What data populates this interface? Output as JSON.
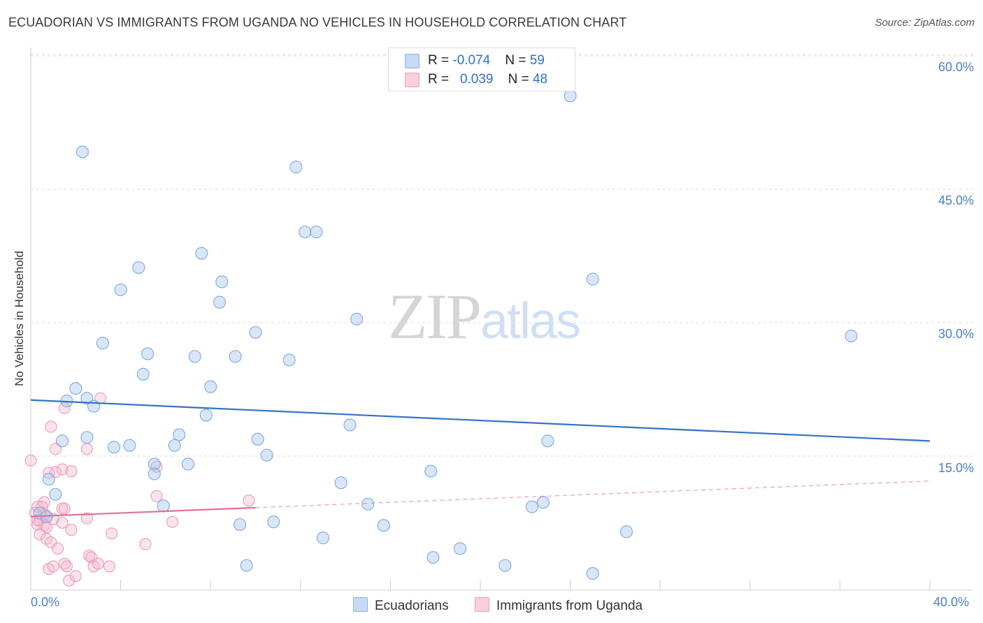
{
  "header": {
    "title": "ECUADORIAN VS IMMIGRANTS FROM UGANDA NO VEHICLES IN HOUSEHOLD CORRELATION CHART",
    "source": "Source: ZipAtlas.com"
  },
  "watermark": {
    "zip": "ZIP",
    "atlas": "atlas"
  },
  "legend_top": {
    "rows": [
      {
        "r_label": "R = ",
        "r_value": "-0.074",
        "n_label": "N = ",
        "n_value": "59",
        "color": "#a9c8f0"
      },
      {
        "r_label": "R = ",
        "r_value": "0.039",
        "n_label": "N = ",
        "n_value": "48",
        "color": "#f6b8cc"
      }
    ]
  },
  "legend_bottom": {
    "items": [
      "Ecuadorians",
      "Immigrants from Uganda"
    ]
  },
  "chart_data": {
    "type": "scatter",
    "title": "ECUADORIAN VS IMMIGRANTS FROM UGANDA NO VEHICLES IN HOUSEHOLD CORRELATION CHART",
    "xlabel": "",
    "ylabel": "No Vehicles in Household",
    "xlim": [
      0,
      40
    ],
    "ylim": [
      0,
      60
    ],
    "x_tick_labels": [
      "0.0%",
      "40.0%"
    ],
    "y_tick_labels": [
      "15.0%",
      "30.0%",
      "45.0%",
      "60.0%"
    ],
    "y_ticks": [
      15,
      30,
      45,
      60
    ],
    "grid": true,
    "legend_position": "bottom",
    "colors": {
      "ecuadorians": "#a9c8f0",
      "ecuadorians_line": "#2f72cf",
      "uganda": "#f6b8cc",
      "uganda_line": "#e2719a"
    },
    "series": [
      {
        "name": "Ecuadorians",
        "trend": {
          "x": [
            0,
            40
          ],
          "y": [
            21.3,
            16.7
          ]
        },
        "points": [
          [
            2.3,
            49.2
          ],
          [
            11.8,
            47.5
          ],
          [
            24.0,
            55.5
          ],
          [
            12.2,
            40.2
          ],
          [
            12.7,
            40.2
          ],
          [
            7.6,
            37.8
          ],
          [
            4.8,
            36.2
          ],
          [
            4.0,
            33.7
          ],
          [
            8.5,
            34.6
          ],
          [
            8.4,
            32.3
          ],
          [
            14.5,
            30.4
          ],
          [
            25.0,
            34.9
          ],
          [
            36.5,
            28.5
          ],
          [
            3.2,
            27.7
          ],
          [
            10.0,
            28.9
          ],
          [
            5.2,
            26.5
          ],
          [
            7.3,
            26.2
          ],
          [
            9.1,
            26.2
          ],
          [
            11.5,
            25.8
          ],
          [
            5.0,
            24.2
          ],
          [
            2.0,
            22.6
          ],
          [
            8.0,
            22.8
          ],
          [
            2.5,
            21.5
          ],
          [
            1.6,
            21.2
          ],
          [
            2.8,
            20.6
          ],
          [
            7.8,
            19.6
          ],
          [
            14.2,
            18.5
          ],
          [
            2.5,
            17.1
          ],
          [
            6.6,
            17.4
          ],
          [
            10.1,
            16.9
          ],
          [
            1.4,
            16.7
          ],
          [
            3.7,
            16.0
          ],
          [
            4.4,
            16.2
          ],
          [
            6.4,
            16.2
          ],
          [
            23.0,
            16.7
          ],
          [
            10.5,
            15.1
          ],
          [
            5.5,
            14.1
          ],
          [
            7.0,
            14.1
          ],
          [
            17.8,
            13.3
          ],
          [
            5.5,
            13.0
          ],
          [
            0.8,
            12.4
          ],
          [
            13.8,
            12.0
          ],
          [
            1.1,
            10.7
          ],
          [
            5.9,
            9.4
          ],
          [
            15.0,
            9.6
          ],
          [
            22.8,
            9.8
          ],
          [
            22.3,
            9.3
          ],
          [
            0.4,
            8.6
          ],
          [
            0.7,
            8.2
          ],
          [
            9.3,
            7.3
          ],
          [
            10.8,
            7.6
          ],
          [
            15.7,
            7.2
          ],
          [
            26.5,
            6.5
          ],
          [
            13.0,
            5.8
          ],
          [
            19.1,
            4.6
          ],
          [
            17.9,
            3.6
          ],
          [
            21.1,
            2.7
          ],
          [
            9.6,
            2.7
          ],
          [
            25.0,
            1.8
          ]
        ]
      },
      {
        "name": "Immigrants from Uganda",
        "trend": {
          "x": [
            0,
            10
          ],
          "y": [
            8.2,
            9.2
          ]
        },
        "trend_extension": {
          "x": [
            10,
            40
          ],
          "y": [
            9.2,
            12.2
          ]
        },
        "points": [
          [
            0.0,
            14.5
          ],
          [
            3.1,
            21.5
          ],
          [
            1.5,
            20.4
          ],
          [
            0.9,
            18.3
          ],
          [
            1.1,
            15.8
          ],
          [
            2.5,
            15.8
          ],
          [
            1.4,
            13.5
          ],
          [
            0.8,
            13.1
          ],
          [
            1.1,
            13.2
          ],
          [
            1.8,
            13.3
          ],
          [
            5.6,
            13.8
          ],
          [
            5.6,
            10.5
          ],
          [
            0.6,
            9.8
          ],
          [
            9.7,
            10.0
          ],
          [
            0.3,
            9.3
          ],
          [
            0.5,
            9.3
          ],
          [
            1.4,
            9.1
          ],
          [
            1.5,
            9.1
          ],
          [
            0.2,
            8.6
          ],
          [
            0.6,
            8.5
          ],
          [
            0.7,
            8.1
          ],
          [
            2.5,
            8.0
          ],
          [
            0.4,
            7.8
          ],
          [
            1.4,
            7.5
          ],
          [
            6.3,
            7.6
          ],
          [
            0.3,
            7.3
          ],
          [
            0.6,
            7.2
          ],
          [
            0.7,
            7.0
          ],
          [
            1.8,
            6.7
          ],
          [
            3.6,
            6.3
          ],
          [
            0.4,
            6.2
          ],
          [
            0.7,
            5.7
          ],
          [
            0.9,
            5.3
          ],
          [
            5.1,
            5.1
          ],
          [
            1.2,
            4.6
          ],
          [
            1.5,
            2.9
          ],
          [
            2.6,
            3.8
          ],
          [
            2.7,
            3.6
          ],
          [
            1.6,
            2.6
          ],
          [
            2.8,
            2.6
          ],
          [
            3.5,
            2.6
          ],
          [
            0.8,
            2.3
          ],
          [
            1.0,
            2.6
          ],
          [
            1.7,
            1.0
          ],
          [
            2.0,
            1.5
          ],
          [
            0.3,
            7.8
          ],
          [
            1.0,
            7.9
          ],
          [
            3.0,
            2.9
          ]
        ]
      }
    ]
  }
}
